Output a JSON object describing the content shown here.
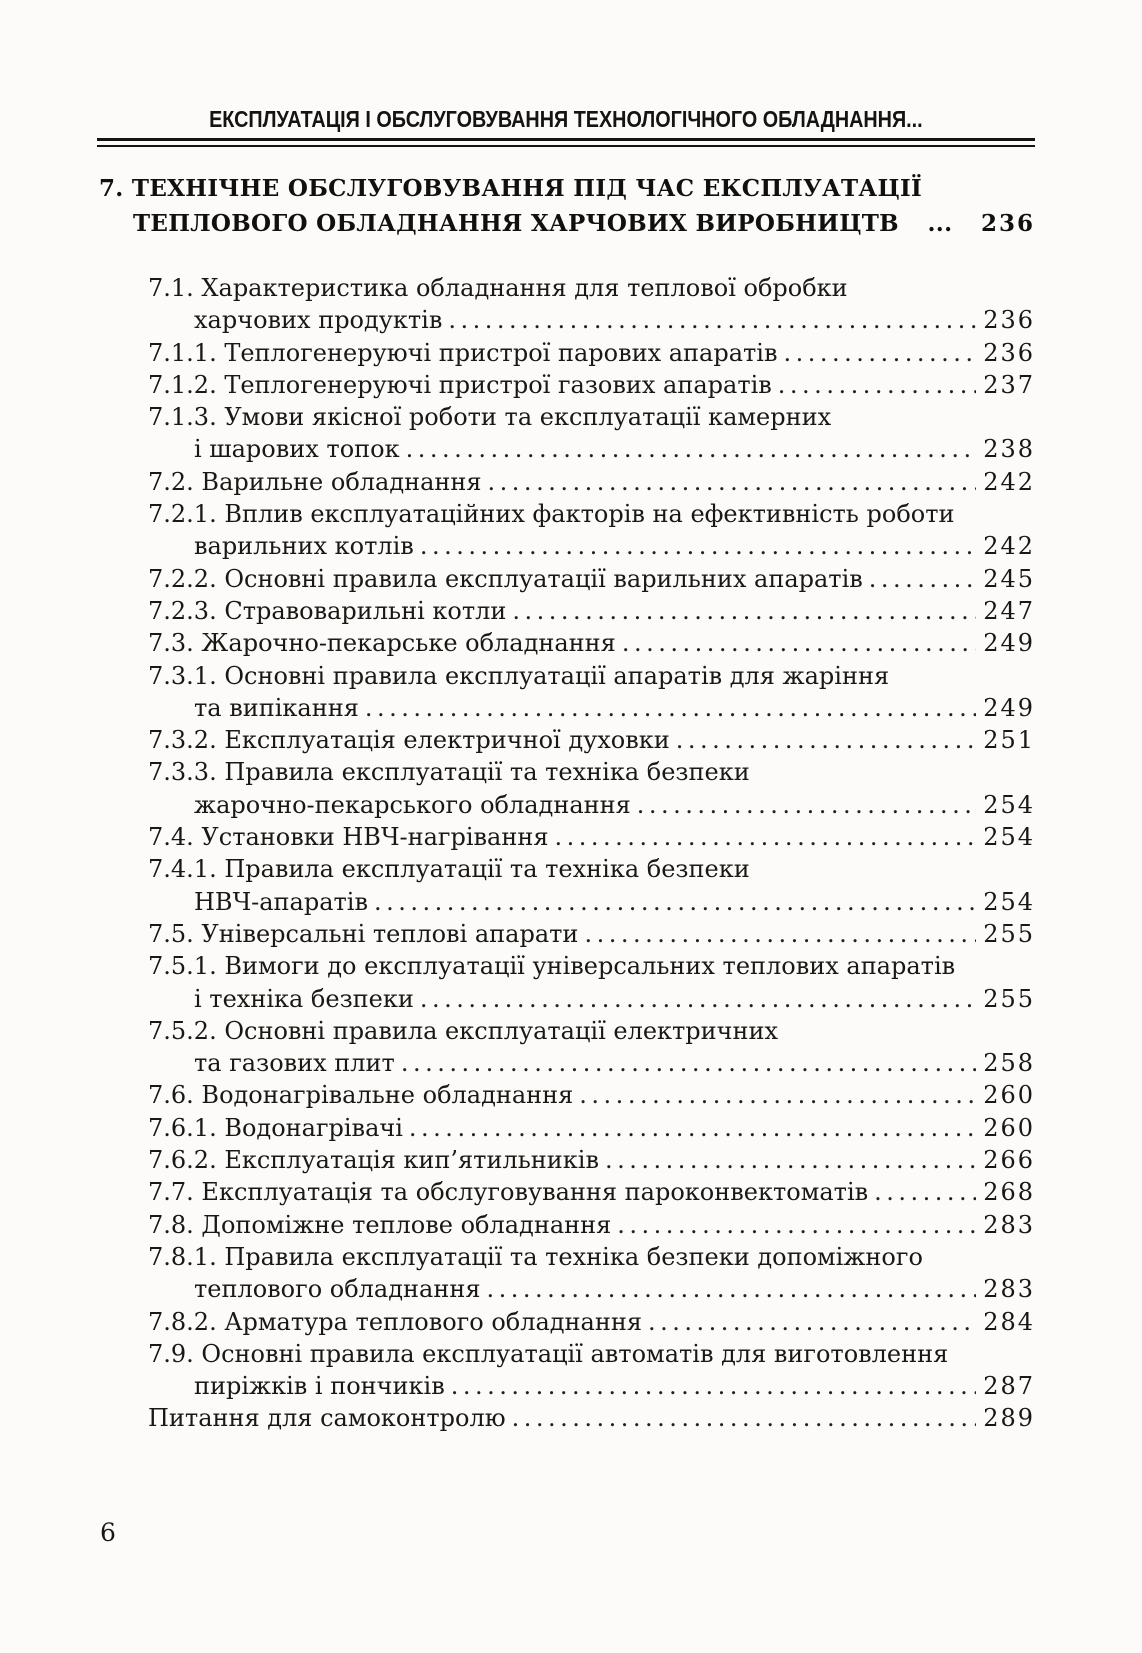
{
  "page": {
    "running_header": "ЕКСПЛУАТАЦІЯ І ОБСЛУГОВУВАННЯ ТЕХНОЛОГІЧНОГО ОБЛАДНАННЯ...",
    "page_number": "6",
    "ink_color": "#1b1713",
    "paper_color": "#fcfbf9"
  },
  "chapter": {
    "line1": "7. ТЕХНІЧНЕ ОБСЛУГОВУВАННЯ ПІД ЧАС ЕКСПЛУАТАЦІЇ",
    "line2": "ТЕПЛОВОГО ОБЛАДНАННЯ ХАРЧОВИХ ВИРОБНИЦТВ",
    "separator": "...",
    "page": "236"
  },
  "toc": {
    "entries": [
      {
        "num": "7.1.",
        "lines": [
          "Характеристика обладнання для теплової обробки",
          "харчових продуктів"
        ],
        "page": "236"
      },
      {
        "num": "7.1.1.",
        "lines": [
          "Теплогенеруючі пристрої парових апаратів"
        ],
        "page": "236"
      },
      {
        "num": "7.1.2.",
        "lines": [
          "Теплогенеруючі пристрої газових апаратів"
        ],
        "page": "237"
      },
      {
        "num": "7.1.3.",
        "lines": [
          "Умови якісної роботи та експлуатації камерних",
          "і шарових топок"
        ],
        "page": "238"
      },
      {
        "num": "7.2.",
        "lines": [
          "Варильне обладнання"
        ],
        "page": "242"
      },
      {
        "num": "7.2.1.",
        "lines": [
          "Вплив експлуатаційних факторів на ефективність роботи",
          "варильних котлів"
        ],
        "page": "242"
      },
      {
        "num": "7.2.2.",
        "lines": [
          "Основні правила експлуатації варильних апаратів"
        ],
        "page": "245"
      },
      {
        "num": "7.2.3.",
        "lines": [
          "Стравоварильні котли"
        ],
        "page": "247"
      },
      {
        "num": "7.3.",
        "lines": [
          "Жарочно-пекарське обладнання"
        ],
        "page": "249"
      },
      {
        "num": "7.3.1.",
        "lines": [
          "Основні правила експлуатації апаратів для жаріння",
          "та випікання"
        ],
        "page": "249"
      },
      {
        "num": "7.3.2.",
        "lines": [
          "Експлуатація електричної духовки"
        ],
        "page": "251"
      },
      {
        "num": "7.3.3.",
        "lines": [
          "Правила експлуатації та техніка безпеки",
          "жарочно-пекарського обладнання"
        ],
        "page": "254"
      },
      {
        "num": "7.4.",
        "lines": [
          "Установки  НВЧ-нагрівання"
        ],
        "page": "254"
      },
      {
        "num": "7.4.1.",
        "lines": [
          "Правила експлуатації та техніка безпеки",
          "НВЧ-апаратів"
        ],
        "page": "254"
      },
      {
        "num": "7.5.",
        "lines": [
          "Універсальні теплові апарати"
        ],
        "page": "255"
      },
      {
        "num": "7.5.1.",
        "lines": [
          "Вимоги до експлуатації універсальних теплових апаратів",
          "і техніка безпеки"
        ],
        "page": "255"
      },
      {
        "num": "7.5.2.",
        "lines": [
          "Основні правила експлуатації електричних",
          "та газових плит"
        ],
        "page": "258"
      },
      {
        "num": "7.6.",
        "lines": [
          "Водонагрівальне обладнання"
        ],
        "page": "260"
      },
      {
        "num": "7.6.1.",
        "lines": [
          "Водонагрівачі"
        ],
        "page": "260"
      },
      {
        "num": "7.6.2.",
        "lines": [
          "Експлуатація кип’ятильників"
        ],
        "page": "266"
      },
      {
        "num": "7.7.",
        "lines": [
          "Експлуатація та обслуговування пароконвектоматів"
        ],
        "page": "268"
      },
      {
        "num": "7.8.",
        "lines": [
          "Допоміжне теплове обладнання"
        ],
        "page": "283"
      },
      {
        "num": "7.8.1.",
        "lines": [
          "Правила експлуатації та техніка безпеки допоміжного",
          "теплового обладнання"
        ],
        "page": "283"
      },
      {
        "num": "7.8.2.",
        "lines": [
          "Арматура теплового обладнання"
        ],
        "page": "284"
      },
      {
        "num": "7.9.",
        "lines": [
          "Основні правила експлуатації автоматів для виготовлення",
          "пиріжків і пончиків"
        ],
        "page": "287"
      },
      {
        "num": "",
        "lines": [
          "Питання для самоконтролю"
        ],
        "page": "289"
      }
    ]
  }
}
